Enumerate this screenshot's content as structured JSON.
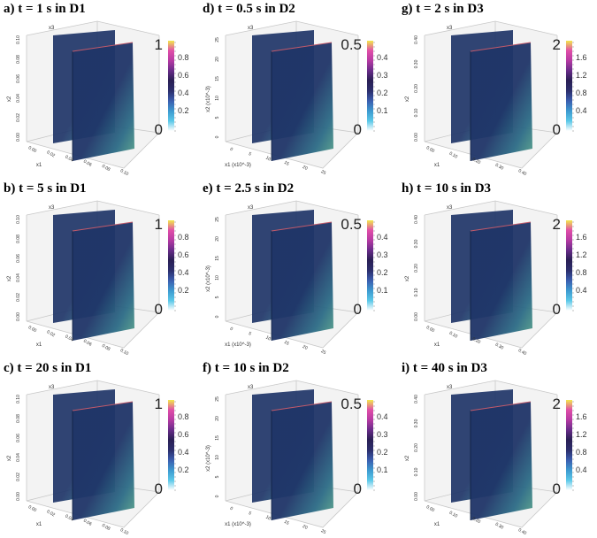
{
  "panels": [
    {
      "title": "a) t = 1 s in D1",
      "cbar_max": "1",
      "cbar_min": "0",
      "cbar_ticks": [
        "0.8",
        "0.6",
        "0.4",
        "0.2"
      ],
      "axis_label_vertical": "x3",
      "axis_label_side": "x2",
      "axis_label_bottom": "x1",
      "x1_ticks": [
        "0.00",
        "0.02",
        "0.04",
        "0.06",
        "0.08",
        "0.10"
      ],
      "x2_ticks": [
        "0.10",
        "0.08",
        "0.06",
        "0.04",
        "0.02",
        "0.00"
      ]
    },
    {
      "title": "d) t = 0.5 s in D2",
      "cbar_max": "0.5",
      "cbar_min": "0",
      "cbar_ticks": [
        "0.4",
        "0.3",
        "0.2",
        "0.1"
      ],
      "axis_label_vertical": "x3",
      "axis_label_side": "x2 (x10^-3)",
      "axis_label_bottom": "x1 (x10^-3)",
      "x1_ticks": [
        "0",
        "5",
        "10",
        "15",
        "20",
        "25"
      ],
      "x2_ticks": [
        "25",
        "20",
        "15",
        "10",
        "5",
        "0"
      ]
    },
    {
      "title": "g) t = 2 s in D3",
      "cbar_max": "2",
      "cbar_min": "0",
      "cbar_ticks": [
        "1.6",
        "1.2",
        "0.8",
        "0.4"
      ],
      "axis_label_vertical": "x3",
      "axis_label_side": "x2",
      "axis_label_bottom": "x1",
      "x1_ticks": [
        "0.00",
        "0.10",
        "0.20",
        "0.30",
        "0.40"
      ],
      "x2_ticks": [
        "0.40",
        "0.30",
        "0.20",
        "0.10",
        "0.00"
      ]
    },
    {
      "title": "b) t = 5 s in D1",
      "cbar_max": "1",
      "cbar_min": "0",
      "cbar_ticks": [
        "0.8",
        "0.6",
        "0.4",
        "0.2"
      ],
      "axis_label_vertical": "x3",
      "axis_label_side": "x2",
      "axis_label_bottom": "x1",
      "x1_ticks": [
        "0.00",
        "0.02",
        "0.04",
        "0.06",
        "0.08",
        "0.10"
      ],
      "x2_ticks": [
        "0.10",
        "0.08",
        "0.06",
        "0.04",
        "0.02",
        "0.00"
      ]
    },
    {
      "title": "e) t = 2.5 s in D2",
      "cbar_max": "0.5",
      "cbar_min": "0",
      "cbar_ticks": [
        "0.4",
        "0.3",
        "0.2",
        "0.1"
      ],
      "axis_label_vertical": "x3",
      "axis_label_side": "x2 (x10^-3)",
      "axis_label_bottom": "x1 (x10^-3)",
      "x1_ticks": [
        "0",
        "5",
        "10",
        "15",
        "20",
        "25"
      ],
      "x2_ticks": [
        "25",
        "20",
        "15",
        "10",
        "5",
        "0"
      ]
    },
    {
      "title": "h) t = 10 s in D3",
      "cbar_max": "2",
      "cbar_min": "0",
      "cbar_ticks": [
        "1.6",
        "1.2",
        "0.8",
        "0.4"
      ],
      "axis_label_vertical": "x3",
      "axis_label_side": "x2",
      "axis_label_bottom": "x1",
      "x1_ticks": [
        "0.00",
        "0.10",
        "0.20",
        "0.30",
        "0.40"
      ],
      "x2_ticks": [
        "0.40",
        "0.30",
        "0.20",
        "0.10",
        "0.00"
      ]
    },
    {
      "title": "c) t = 20 s in D1",
      "cbar_max": "1",
      "cbar_min": "0",
      "cbar_ticks": [
        "0.8",
        "0.6",
        "0.4",
        "0.2"
      ],
      "axis_label_vertical": "x3",
      "axis_label_side": "x2",
      "axis_label_bottom": "x1",
      "x1_ticks": [
        "0.00",
        "0.02",
        "0.04",
        "0.06",
        "0.08",
        "0.10"
      ],
      "x2_ticks": [
        "0.10",
        "0.08",
        "0.06",
        "0.04",
        "0.02",
        "0.00"
      ]
    },
    {
      "title": "f) t = 10 s in D2",
      "cbar_max": "0.5",
      "cbar_min": "0",
      "cbar_ticks": [
        "0.4",
        "0.3",
        "0.2",
        "0.1"
      ],
      "axis_label_vertical": "x3",
      "axis_label_side": "x2 (x10^-3)",
      "axis_label_bottom": "x1 (x10^-3)",
      "x1_ticks": [
        "0",
        "5",
        "10",
        "15",
        "20",
        "25"
      ],
      "x2_ticks": [
        "25",
        "20",
        "15",
        "10",
        "5",
        "0"
      ]
    },
    {
      "title": "i) t = 40 s in D3",
      "cbar_max": "2",
      "cbar_min": "0",
      "cbar_ticks": [
        "1.6",
        "1.2",
        "0.8",
        "0.4"
      ],
      "axis_label_vertical": "x3",
      "axis_label_side": "x2",
      "axis_label_bottom": "x1",
      "x1_ticks": [
        "0.00",
        "0.10",
        "0.20",
        "0.30",
        "0.40"
      ],
      "x2_ticks": [
        "0.40",
        "0.30",
        "0.20",
        "0.10",
        "0.00"
      ]
    }
  ],
  "colormap": [
    "#ffffff",
    "#5bc8e8",
    "#3d9ad0",
    "#3b5fb0",
    "#2c2f6e",
    "#2a1f55",
    "#6a2c8a",
    "#b63aa3",
    "#e04ea8",
    "#f2e84a"
  ],
  "slice_color_dark": "#1f3568",
  "slice_color_mid": "#2c6b86",
  "slice_color_light": "#5aa58a"
}
